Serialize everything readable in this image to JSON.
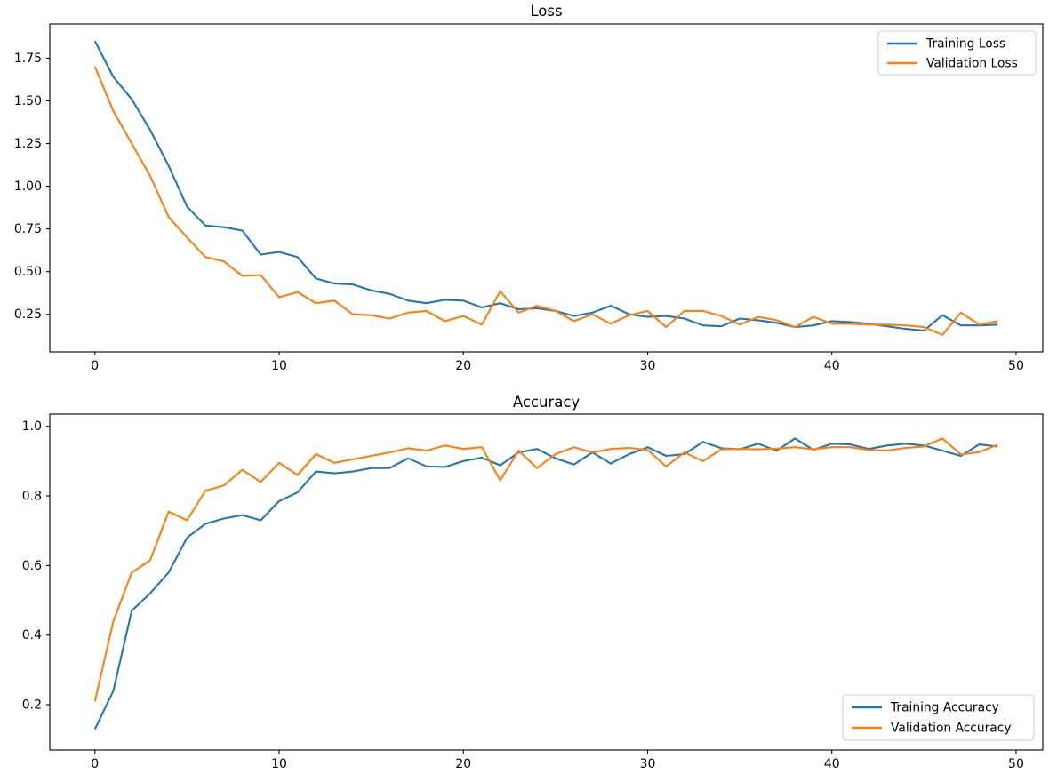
{
  "figure": {
    "background": "#ffffff",
    "accent_colors": {
      "training": "#1f77b4",
      "validation": "#ff7f0e"
    },
    "legend_border_color": "#cccccc",
    "spine_color": "#000000"
  },
  "chart_data": [
    {
      "type": "line",
      "title": "Loss",
      "xlabel": "",
      "ylabel": "",
      "grid": false,
      "x": [
        0,
        1,
        2,
        3,
        4,
        5,
        6,
        7,
        8,
        9,
        10,
        11,
        12,
        13,
        14,
        15,
        16,
        17,
        18,
        19,
        20,
        21,
        22,
        23,
        24,
        25,
        26,
        27,
        28,
        29,
        30,
        31,
        32,
        33,
        34,
        35,
        36,
        37,
        38,
        39,
        40,
        41,
        42,
        43,
        44,
        45,
        46,
        47,
        48,
        49
      ],
      "series": [
        {
          "name": "Training Loss",
          "color": "#1f77b4",
          "values": [
            1.85,
            1.64,
            1.51,
            1.33,
            1.12,
            0.88,
            0.77,
            0.76,
            0.74,
            0.6,
            0.615,
            0.585,
            0.46,
            0.43,
            0.425,
            0.39,
            0.37,
            0.33,
            0.315,
            0.335,
            0.33,
            0.29,
            0.315,
            0.28,
            0.285,
            0.27,
            0.24,
            0.26,
            0.3,
            0.25,
            0.235,
            0.24,
            0.225,
            0.185,
            0.18,
            0.225,
            0.215,
            0.2,
            0.175,
            0.185,
            0.21,
            0.205,
            0.195,
            0.18,
            0.165,
            0.155,
            0.245,
            0.185,
            0.185,
            0.19
          ]
        },
        {
          "name": "Validation Loss",
          "color": "#ff7f0e",
          "values": [
            1.7,
            1.44,
            1.25,
            1.06,
            0.82,
            0.7,
            0.585,
            0.56,
            0.475,
            0.48,
            0.35,
            0.38,
            0.315,
            0.33,
            0.25,
            0.245,
            0.225,
            0.26,
            0.27,
            0.21,
            0.24,
            0.19,
            0.385,
            0.26,
            0.3,
            0.27,
            0.21,
            0.25,
            0.195,
            0.245,
            0.27,
            0.175,
            0.27,
            0.27,
            0.24,
            0.19,
            0.235,
            0.215,
            0.175,
            0.235,
            0.195,
            0.195,
            0.19,
            0.19,
            0.185,
            0.175,
            0.13,
            0.26,
            0.19,
            0.21
          ]
        }
      ],
      "xlim": [
        -2.45,
        51.45
      ],
      "ylim": [
        0.03,
        1.95
      ],
      "x_ticks": [
        {
          "value": 0,
          "label": "0"
        },
        {
          "value": 10,
          "label": "10"
        },
        {
          "value": 20,
          "label": "20"
        },
        {
          "value": 30,
          "label": "30"
        },
        {
          "value": 40,
          "label": "40"
        },
        {
          "value": 50,
          "label": "50"
        }
      ],
      "y_ticks": [
        {
          "value": 0.25,
          "label": "0.25"
        },
        {
          "value": 0.5,
          "label": "0.50"
        },
        {
          "value": 0.75,
          "label": "0.75"
        },
        {
          "value": 1.0,
          "label": "1.00"
        },
        {
          "value": 1.25,
          "label": "1.25"
        },
        {
          "value": 1.5,
          "label": "1.50"
        },
        {
          "value": 1.75,
          "label": "1.75"
        }
      ],
      "legend": {
        "location": "upper right",
        "entries": [
          "Training Loss",
          "Validation Loss"
        ]
      }
    },
    {
      "type": "line",
      "title": "Accuracy",
      "xlabel": "",
      "ylabel": "",
      "grid": false,
      "x": [
        0,
        1,
        2,
        3,
        4,
        5,
        6,
        7,
        8,
        9,
        10,
        11,
        12,
        13,
        14,
        15,
        16,
        17,
        18,
        19,
        20,
        21,
        22,
        23,
        24,
        25,
        26,
        27,
        28,
        29,
        30,
        31,
        32,
        33,
        34,
        35,
        36,
        37,
        38,
        39,
        40,
        41,
        42,
        43,
        44,
        45,
        46,
        47,
        48,
        49
      ],
      "series": [
        {
          "name": "Training Accuracy",
          "color": "#1f77b4",
          "values": [
            0.13,
            0.24,
            0.47,
            0.52,
            0.58,
            0.68,
            0.72,
            0.735,
            0.745,
            0.73,
            0.785,
            0.81,
            0.87,
            0.865,
            0.87,
            0.88,
            0.88,
            0.908,
            0.885,
            0.883,
            0.9,
            0.91,
            0.888,
            0.925,
            0.935,
            0.908,
            0.89,
            0.925,
            0.893,
            0.92,
            0.94,
            0.915,
            0.92,
            0.955,
            0.937,
            0.934,
            0.95,
            0.93,
            0.965,
            0.932,
            0.95,
            0.948,
            0.935,
            0.945,
            0.95,
            0.945,
            0.93,
            0.915,
            0.948,
            0.942
          ]
        },
        {
          "name": "Validation Accuracy",
          "color": "#ff7f0e",
          "values": [
            0.21,
            0.44,
            0.58,
            0.615,
            0.755,
            0.73,
            0.815,
            0.83,
            0.875,
            0.84,
            0.895,
            0.86,
            0.92,
            0.895,
            0.905,
            0.915,
            0.925,
            0.937,
            0.93,
            0.945,
            0.935,
            0.94,
            0.845,
            0.93,
            0.88,
            0.92,
            0.94,
            0.925,
            0.935,
            0.938,
            0.932,
            0.885,
            0.925,
            0.9,
            0.934,
            0.935,
            0.934,
            0.936,
            0.94,
            0.934,
            0.94,
            0.94,
            0.932,
            0.93,
            0.938,
            0.942,
            0.965,
            0.919,
            0.926,
            0.947
          ]
        }
      ],
      "xlim": [
        -2.45,
        51.45
      ],
      "ylim": [
        0.07,
        1.035
      ],
      "x_ticks": [
        {
          "value": 0,
          "label": "0"
        },
        {
          "value": 10,
          "label": "10"
        },
        {
          "value": 20,
          "label": "20"
        },
        {
          "value": 30,
          "label": "30"
        },
        {
          "value": 40,
          "label": "40"
        },
        {
          "value": 50,
          "label": "50"
        }
      ],
      "y_ticks": [
        {
          "value": 0.2,
          "label": "0.2"
        },
        {
          "value": 0.4,
          "label": "0.4"
        },
        {
          "value": 0.6,
          "label": "0.6"
        },
        {
          "value": 0.8,
          "label": "0.8"
        },
        {
          "value": 1.0,
          "label": "1.0"
        }
      ],
      "legend": {
        "location": "lower right",
        "entries": [
          "Training Accuracy",
          "Validation Accuracy"
        ]
      }
    }
  ]
}
